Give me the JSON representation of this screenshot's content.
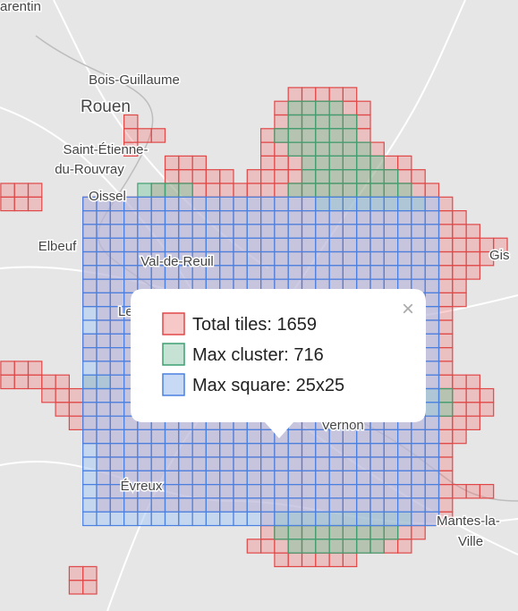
{
  "map_labels": [
    "arentin",
    "Bois-Guillaume",
    "Rouen",
    "Saint-Étienne-",
    "du-Rouvray",
    "Oissel",
    "Elbeuf",
    "Val-de-Reuil",
    "Gis",
    "Le",
    "Vernon",
    "Évreux",
    "Mantes-la-",
    "Ville"
  ],
  "popup": {
    "close": "×",
    "legend": [
      {
        "label": "Total tiles: 1659",
        "color": "#e04848"
      },
      {
        "label": "Max cluster: 716",
        "color": "#3f9f70"
      },
      {
        "label": "Max square: 25x25",
        "color": "#4a80e0"
      }
    ]
  }
}
